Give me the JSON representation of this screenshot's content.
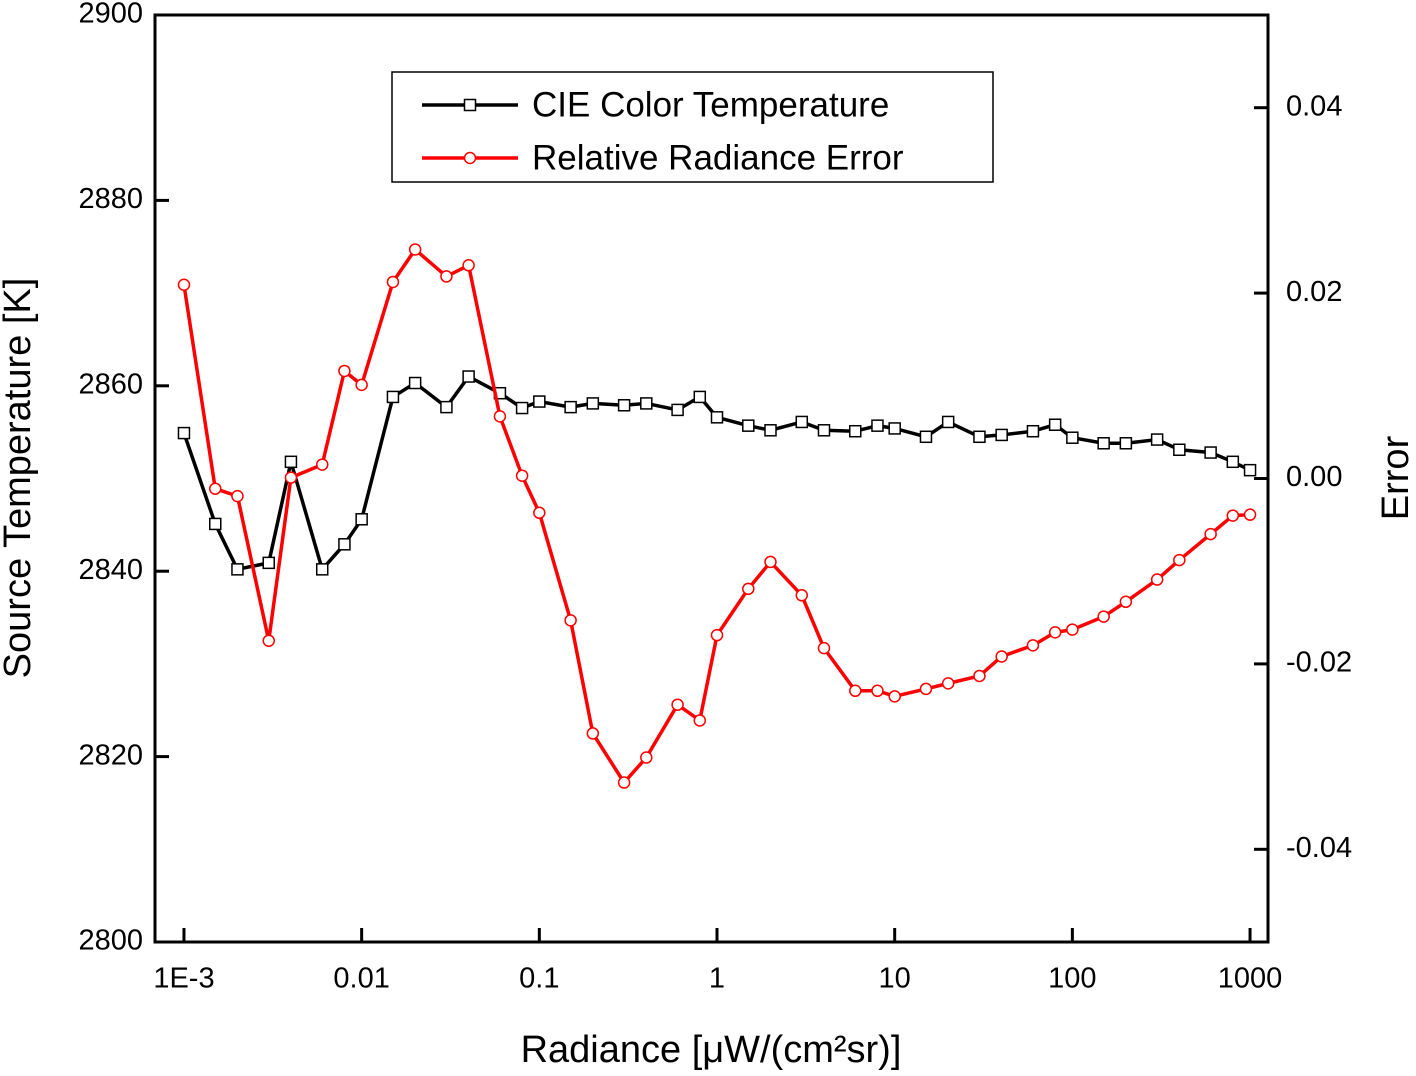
{
  "chart_data": {
    "type": "line",
    "x_label": "Radiance [μW/(cm²sr)]",
    "y_label": "Source Temperature [K]",
    "y2_label": "Error",
    "x_scale": "log",
    "legend": "upper center",
    "xlim": [
      0.000687,
      1262
    ],
    "xticks": [
      {
        "value": 0.001,
        "label": "1E-3"
      },
      0.01,
      0.1,
      1,
      10,
      100,
      1000
    ],
    "ylim": [
      2800,
      2900
    ],
    "yticks": [
      2800,
      2820,
      2840,
      2860,
      2880,
      2900
    ],
    "y2lim": [
      -0.05,
      0.05
    ],
    "y2ticks": [
      -0.04,
      -0.02,
      {
        "value": 0,
        "label": "0.00"
      },
      0.02,
      0.04
    ],
    "x": [
      0.001,
      0.0015,
      0.002,
      0.003,
      0.004,
      0.006,
      0.008,
      0.01,
      0.015,
      0.02,
      0.03,
      0.04,
      0.06,
      0.08,
      0.1,
      0.15,
      0.2,
      0.3,
      0.4,
      0.6,
      0.8,
      1,
      1.5,
      2,
      3,
      4,
      6,
      8,
      10,
      15,
      20,
      30,
      40,
      60,
      80,
      100,
      150,
      200,
      300,
      400,
      600,
      800,
      1000
    ],
    "series": [
      {
        "name": "CIE Color Temperature",
        "color": "#000000",
        "marker": "square",
        "values": [
          2854.9,
          2845.1,
          2840.2,
          2840.9,
          2851.8,
          2840.2,
          2842.9,
          2845.6,
          2858.8,
          2860.3,
          2857.7,
          2861.0,
          2859.2,
          2857.6,
          2858.3,
          2857.7,
          2858.1,
          2857.9,
          2858.1,
          2857.4,
          2858.8,
          2856.6,
          2855.7,
          2855.2,
          2856.1,
          2855.2,
          2855.1,
          2855.7,
          2855.4,
          2854.5,
          2856.1,
          2854.5,
          2854.7,
          2855.1,
          2855.8,
          2854.4,
          2853.8,
          2853.8,
          2854.2,
          2853.1,
          2852.8,
          2851.8,
          2850.9
        ]
      },
      {
        "name": "Relative Radiance Error",
        "color": "#ff0000",
        "marker": "circle",
        "axis": "y2",
        "values": [
          0.0209,
          -0.0011,
          -0.0019,
          -0.0175,
          0.0001,
          0.0015,
          0.0116,
          0.0101,
          0.0212,
          0.0247,
          0.0218,
          0.023,
          0.0067,
          0.0003,
          -0.0037,
          -0.0153,
          -0.0275,
          -0.0328,
          -0.0301,
          -0.0244,
          -0.0261,
          -0.0169,
          -0.0119,
          -0.009,
          -0.0126,
          -0.0183,
          -0.0229,
          -0.0229,
          -0.0235,
          -0.0227,
          -0.0221,
          -0.0213,
          -0.0192,
          -0.018,
          -0.0166,
          -0.0163,
          -0.0149,
          -0.0133,
          -0.0109,
          -0.0088,
          -0.006,
          -0.004,
          -0.0039
        ]
      }
    ]
  }
}
